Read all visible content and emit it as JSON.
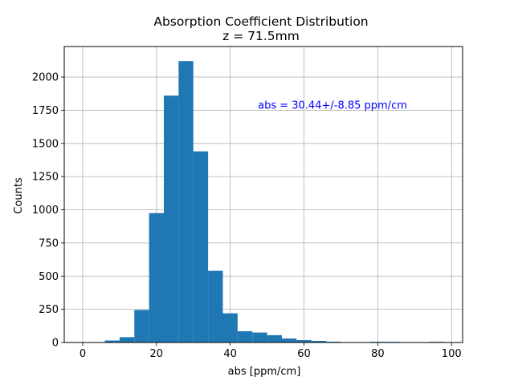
{
  "chart_data": {
    "type": "bar",
    "title": "Absorption Coefficient Distribution",
    "subtitle": "z = 71.5mm",
    "xlabel": "abs [ppm/cm]",
    "ylabel": "Counts",
    "xlim": [
      -5,
      103
    ],
    "ylim": [
      0,
      2230
    ],
    "xticks": [
      0,
      20,
      40,
      60,
      80,
      100
    ],
    "yticks": [
      0,
      250,
      500,
      750,
      1000,
      1250,
      1500,
      1750,
      2000
    ],
    "grid": true,
    "bar_color": "#1f77b4",
    "bins": [
      {
        "x0": 6.0,
        "x1": 10.0,
        "value": 15
      },
      {
        "x0": 10.0,
        "x1": 14.0,
        "value": 40
      },
      {
        "x0": 14.0,
        "x1": 18.0,
        "value": 245
      },
      {
        "x0": 18.0,
        "x1": 22.0,
        "value": 975
      },
      {
        "x0": 22.0,
        "x1": 26.0,
        "value": 1860
      },
      {
        "x0": 26.0,
        "x1": 30.0,
        "value": 2120
      },
      {
        "x0": 30.0,
        "x1": 34.0,
        "value": 1440
      },
      {
        "x0": 34.0,
        "x1": 38.0,
        "value": 540
      },
      {
        "x0": 38.0,
        "x1": 42.0,
        "value": 220
      },
      {
        "x0": 42.0,
        "x1": 46.0,
        "value": 85
      },
      {
        "x0": 46.0,
        "x1": 50.0,
        "value": 75
      },
      {
        "x0": 50.0,
        "x1": 54.0,
        "value": 55
      },
      {
        "x0": 54.0,
        "x1": 58.0,
        "value": 30
      },
      {
        "x0": 58.0,
        "x1": 62.0,
        "value": 18
      },
      {
        "x0": 62.0,
        "x1": 66.0,
        "value": 12
      },
      {
        "x0": 66.0,
        "x1": 70.0,
        "value": 6
      },
      {
        "x0": 70.0,
        "x1": 74.0,
        "value": 3
      },
      {
        "x0": 74.0,
        "x1": 78.0,
        "value": 2
      },
      {
        "x0": 78.0,
        "x1": 82.0,
        "value": 5
      },
      {
        "x0": 82.0,
        "x1": 86.0,
        "value": 5
      },
      {
        "x0": 86.0,
        "x1": 90.0,
        "value": 1
      },
      {
        "x0": 90.0,
        "x1": 94.0,
        "value": 2
      },
      {
        "x0": 94.0,
        "x1": 98.0,
        "value": 5
      }
    ],
    "annotation": {
      "text": "abs = 30.44+/-8.85 ppm/cm",
      "color": "#0000ff",
      "x": 47.5,
      "y": 1790
    }
  }
}
